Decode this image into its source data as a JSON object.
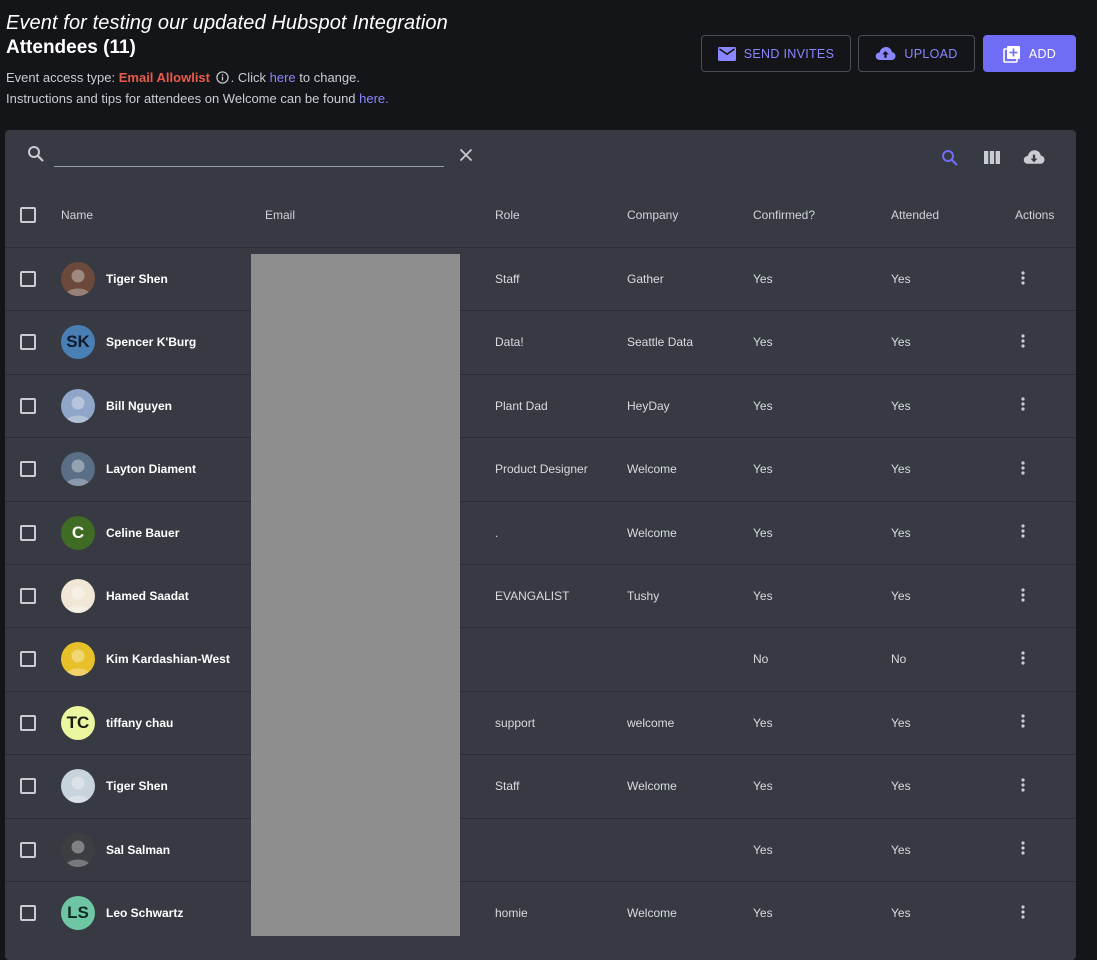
{
  "event_title": "Event for testing our updated Hubspot Integration",
  "attendees_title": "Attendees (11)",
  "info": {
    "access_prefix": "Event access type: ",
    "access_type": "Email Allowlist",
    "click_text": ". Click ",
    "here_link_1": "here",
    "change_text": " to change.",
    "instructions_text": "Instructions and tips for attendees on Welcome can be found ",
    "here_link_2": "here."
  },
  "buttons": {
    "send_invites": "SEND INVITES",
    "upload": "UPLOAD",
    "add": "ADD"
  },
  "colors": {
    "accent": "#716cf5",
    "link": "#8a86ff",
    "access_type": "#ea5a4a",
    "panel": "#373a42",
    "background": "#141518"
  },
  "search": {
    "value": ""
  },
  "table": {
    "headers": {
      "name": "Name",
      "email": "Email",
      "role": "Role",
      "company": "Company",
      "confirmed": "Confirmed?",
      "attended": "Attended",
      "actions": "Actions"
    },
    "rows": [
      {
        "name": "Tiger Shen",
        "avatar_type": "photo",
        "avatar_color": "#6b4a3c",
        "role": "Staff",
        "company": "Gather",
        "confirmed": "Yes",
        "attended": "Yes"
      },
      {
        "name": "Spencer K'Burg",
        "avatar_type": "initials",
        "initials": "SK",
        "avatar_color": "#4a7fb5",
        "avatar_text_color": "#0f1a2a",
        "role": "Data!",
        "company": "Seattle Data",
        "confirmed": "Yes",
        "attended": "Yes"
      },
      {
        "name": "Bill Nguyen",
        "avatar_type": "photo",
        "avatar_color": "#8fa6c8",
        "role": "Plant Dad",
        "company": "HeyDay",
        "confirmed": "Yes",
        "attended": "Yes"
      },
      {
        "name": "Layton Diament",
        "avatar_type": "photo",
        "avatar_color": "#5a6f86",
        "role": "Product Designer",
        "company": "Welcome",
        "confirmed": "Yes",
        "attended": "Yes"
      },
      {
        "name": "Celine Bauer",
        "avatar_type": "initials",
        "initials": "C",
        "avatar_color": "#3f6b25",
        "avatar_text_color": "#ffffff",
        "role": ".",
        "company": "Welcome",
        "confirmed": "Yes",
        "attended": "Yes"
      },
      {
        "name": "Hamed Saadat",
        "avatar_type": "photo",
        "avatar_color": "#f1e7d6",
        "role": "EVANGALIST",
        "company": "Tushy",
        "confirmed": "Yes",
        "attended": "Yes"
      },
      {
        "name": "Kim Kardashian-West",
        "avatar_type": "photo",
        "avatar_color": "#e8c12a",
        "role": "",
        "company": "",
        "confirmed": "No",
        "attended": "No"
      },
      {
        "name": "tiffany chau",
        "avatar_type": "initials",
        "initials": "TC",
        "avatar_color": "#ecf5a0",
        "avatar_text_color": "#1a1a10",
        "role": "support",
        "company": "welcome",
        "confirmed": "Yes",
        "attended": "Yes"
      },
      {
        "name": "Tiger Shen",
        "avatar_type": "photo",
        "avatar_color": "#c9d3dc",
        "role": "Staff",
        "company": "Welcome",
        "confirmed": "Yes",
        "attended": "Yes"
      },
      {
        "name": "Sal Salman",
        "avatar_type": "photo",
        "avatar_color": "#3c3e42",
        "role": "",
        "company": "",
        "confirmed": "Yes",
        "attended": "Yes"
      },
      {
        "name": "Leo Schwartz",
        "avatar_type": "initials",
        "initials": "LS",
        "avatar_color": "#6fc6a4",
        "avatar_text_color": "#0f2a20",
        "role": "homie",
        "company": "Welcome",
        "confirmed": "Yes",
        "attended": "Yes"
      }
    ]
  }
}
